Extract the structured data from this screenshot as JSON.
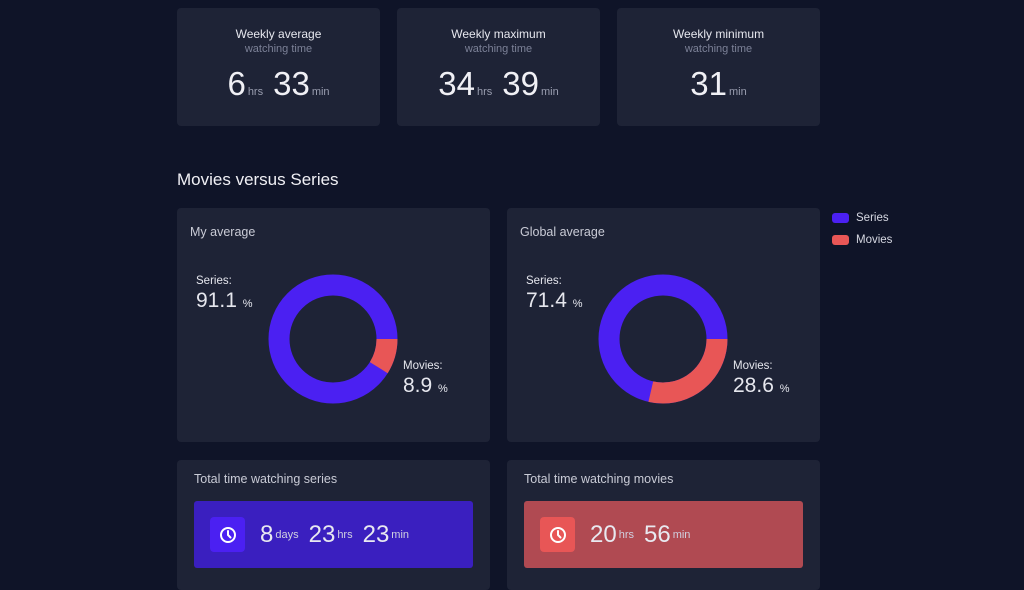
{
  "stats": [
    {
      "title": "Weekly average",
      "subtitle": "watching time",
      "parts": [
        {
          "v": "6",
          "u": "hrs"
        },
        {
          "v": "33",
          "u": "min"
        }
      ]
    },
    {
      "title": "Weekly maximum",
      "subtitle": "watching time",
      "parts": [
        {
          "v": "34",
          "u": "hrs"
        },
        {
          "v": "39",
          "u": "min"
        }
      ]
    },
    {
      "title": "Weekly minimum",
      "subtitle": "watching time",
      "parts": [
        {
          "v": "31",
          "u": "min"
        }
      ]
    }
  ],
  "section_title": "Movies versus Series",
  "legend": [
    {
      "label": "Series",
      "color": "#4b20f2"
    },
    {
      "label": "Movies",
      "color": "#e85656"
    }
  ],
  "my_average": {
    "title": "My average",
    "series_label": "Series:",
    "series_pct": "91.1",
    "movies_label": "Movies:",
    "movies_pct": "8.9",
    "unit": "%"
  },
  "global_average": {
    "title": "Global average",
    "series_label": "Series:",
    "series_pct": "71.4",
    "movies_label": "Movies:",
    "movies_pct": "28.6",
    "unit": "%"
  },
  "total_series": {
    "title": "Total time watching series",
    "days": "8",
    "days_u": "days",
    "hrs": "23",
    "hrs_u": "hrs",
    "min": "23",
    "min_u": "min",
    "icon": "clock-icon",
    "color": "#3a1fbf"
  },
  "total_movies": {
    "title": "Total time watching movies",
    "hrs": "20",
    "hrs_u": "hrs",
    "min": "56",
    "min_u": "min",
    "icon": "clock-icon",
    "color": "#b04a52"
  }
}
